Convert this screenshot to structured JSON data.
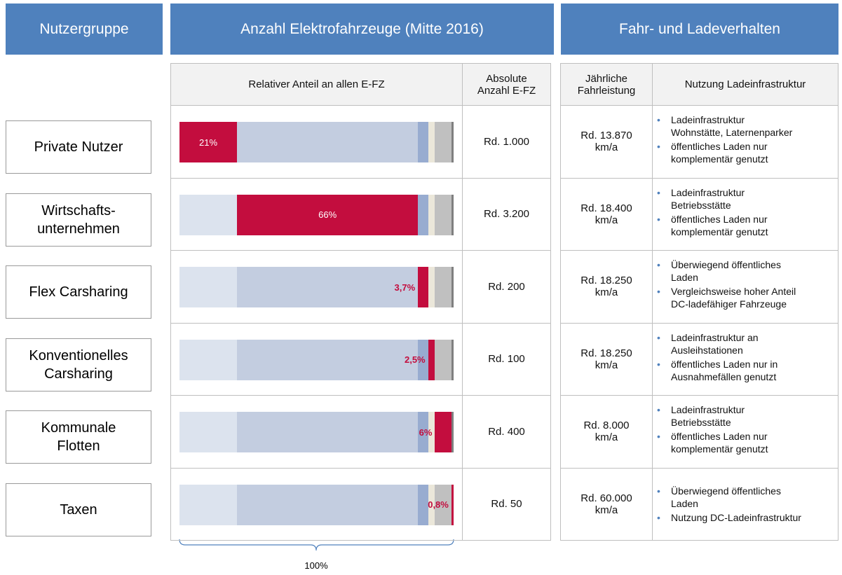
{
  "header": {
    "groups": "Nutzergruppe",
    "count": "Anzahl Elektrofahrzeuge (Mitte 2016)",
    "behaviour": "Fahr- und Ladeverhalten"
  },
  "subheader": {
    "relative": "Relativer Anteil an allen E-FZ",
    "absolute": "Absolute\nAnzahl E-FZ",
    "mileage": "Jährliche\nFahrleistung",
    "charging": "Nutzung Ladeinfrastruktur"
  },
  "chart_data": {
    "type": "bar",
    "stacked": true,
    "categories": [
      "Private Nutzer",
      "Wirtschafts-\nunternehmen",
      "Flex Carsharing",
      "Konventionelles\nCarsharing",
      "Kommunale\nFlotten",
      "Taxen"
    ],
    "values": [
      21,
      66,
      3.7,
      2.5,
      6,
      0.8
    ],
    "value_labels": [
      "21%",
      "66%",
      "3,7%",
      "2,5%",
      "6%",
      "0,8%"
    ],
    "colors": [
      "#dce3ee",
      "#c3cde0",
      "#98acd0",
      "#ebe7da",
      "#c0c0c0",
      "#7f7f7f"
    ],
    "highlight_color": "#c30d3e",
    "xlim": [
      0,
      100
    ],
    "total_label": "100%"
  },
  "absolute": [
    "Rd. 1.000",
    "Rd. 3.200",
    "Rd. 200",
    "Rd. 100",
    "Rd. 400",
    "Rd. 50"
  ],
  "mileage": [
    "Rd. 13.870\nkm/a",
    "Rd. 18.400\nkm/a",
    "Rd. 18.250\nkm/a",
    "Rd. 18.250\nkm/a",
    "Rd. 8.000\nkm/a",
    "Rd. 60.000\nkm/a"
  ],
  "charging": [
    [
      "Ladeinfrastruktur\nWohnstätte, Laternenparker",
      "öffentliches Laden nur\nkomplementär genutzt"
    ],
    [
      "Ladeinfrastruktur\nBetriebsstätte",
      "öffentliches Laden nur\nkomplementär genutzt"
    ],
    [
      "Überwiegend öffentliches\nLaden",
      "Vergleichsweise hoher Anteil\nDC-ladefähiger Fahrzeuge"
    ],
    [
      "Ladeinfrastruktur an\nAusleihstationen",
      "öffentliches Laden nur in\nAusnahmefällen genutzt"
    ],
    [
      "Ladeinfrastruktur\nBetriebsstätte",
      "öffentliches Laden nur\nkomplementär genutzt"
    ],
    [
      "Überwiegend öffentliches\nLaden",
      "Nutzung DC-Ladeinfrastruktur"
    ]
  ]
}
